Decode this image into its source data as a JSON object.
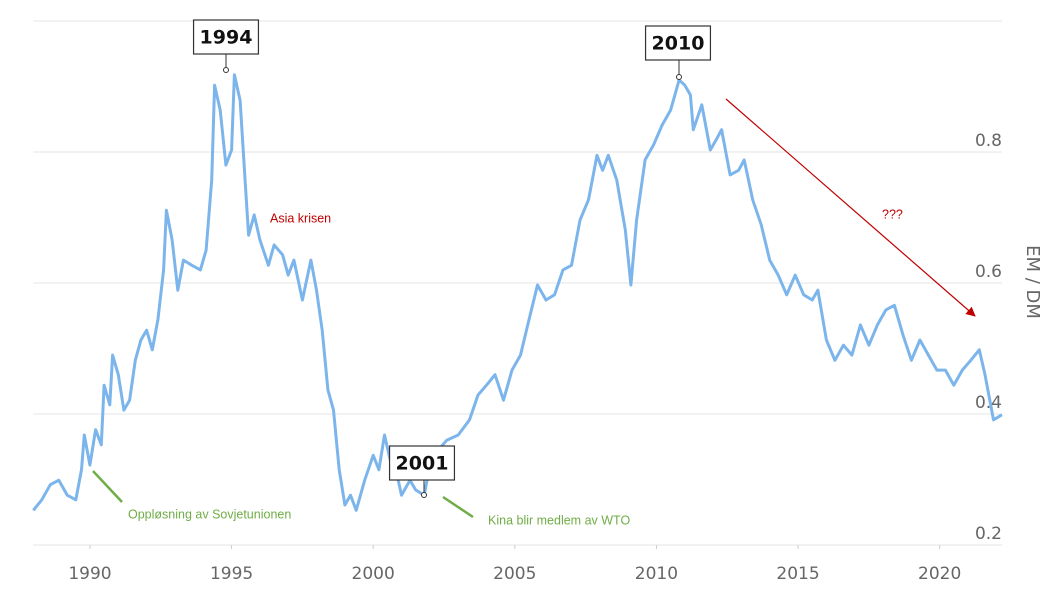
{
  "chart_data": {
    "type": "line",
    "y_label": "EM / DM",
    "xlim": [
      1988,
      2022.2
    ],
    "ylim": [
      0.2,
      1.0
    ],
    "xticks": [
      1990,
      1995,
      2000,
      2005,
      2010,
      2015,
      2020
    ],
    "yticks": [
      0.2,
      0.4,
      0.6,
      0.8
    ],
    "grid": true,
    "series": [
      {
        "color": "#7cb5ec",
        "x": [
          1988.0,
          1988.3,
          1988.6,
          1988.9,
          1989.2,
          1989.5,
          1989.7,
          1989.8,
          1990.0,
          1990.2,
          1990.4,
          1990.5,
          1990.7,
          1990.8,
          1991.0,
          1991.2,
          1991.4,
          1991.6,
          1991.8,
          1992.0,
          1992.2,
          1992.4,
          1992.6,
          1992.7,
          1992.9,
          1993.1,
          1993.3,
          1993.6,
          1993.9,
          1994.1,
          1994.3,
          1994.4,
          1994.6,
          1994.8,
          1995.0,
          1995.1,
          1995.3,
          1995.5,
          1995.6,
          1995.8,
          1996.0,
          1996.3,
          1996.5,
          1996.8,
          1997.0,
          1997.2,
          1997.5,
          1997.8,
          1998.0,
          1998.2,
          1998.4,
          1998.6,
          1998.8,
          1999.0,
          1999.2,
          1999.4,
          1999.7,
          2000.0,
          2000.2,
          2000.4,
          2000.6,
          2000.8,
          2001.0,
          2001.3,
          2001.5,
          2001.8,
          2002.0,
          2002.3,
          2002.6,
          2003.0,
          2003.4,
          2003.7,
          2004.0,
          2004.3,
          2004.6,
          2004.9,
          2005.2,
          2005.5,
          2005.8,
          2006.1,
          2006.4,
          2006.7,
          2007.0,
          2007.3,
          2007.6,
          2007.9,
          2008.1,
          2008.3,
          2008.6,
          2008.9,
          2009.1,
          2009.3,
          2009.6,
          2009.9,
          2010.2,
          2010.5,
          2010.8,
          2011.0,
          2011.2,
          2011.3,
          2011.6,
          2011.9,
          2012.1,
          2012.3,
          2012.6,
          2012.9,
          2013.1,
          2013.4,
          2013.7,
          2014.0,
          2014.3,
          2014.6,
          2014.9,
          2015.2,
          2015.5,
          2015.7,
          2016.0,
          2016.3,
          2016.6,
          2016.9,
          2017.2,
          2017.5,
          2017.8,
          2018.1,
          2018.4,
          2018.7,
          2019.0,
          2019.3,
          2019.6,
          2019.9,
          2020.2,
          2020.5,
          2020.8,
          2021.1,
          2021.4,
          2021.6,
          2021.9,
          2022.2
        ],
        "values": [
          0.253,
          0.269,
          0.292,
          0.299,
          0.276,
          0.269,
          0.315,
          0.368,
          0.322,
          0.376,
          0.353,
          0.444,
          0.414,
          0.49,
          0.46,
          0.406,
          0.421,
          0.482,
          0.513,
          0.528,
          0.498,
          0.544,
          0.62,
          0.711,
          0.666,
          0.589,
          0.635,
          0.627,
          0.62,
          0.65,
          0.757,
          0.902,
          0.864,
          0.78,
          0.803,
          0.918,
          0.879,
          0.742,
          0.673,
          0.704,
          0.666,
          0.627,
          0.658,
          0.643,
          0.612,
          0.635,
          0.574,
          0.635,
          0.589,
          0.528,
          0.437,
          0.406,
          0.315,
          0.261,
          0.276,
          0.253,
          0.299,
          0.337,
          0.315,
          0.368,
          0.33,
          0.315,
          0.276,
          0.299,
          0.284,
          0.276,
          0.322,
          0.345,
          0.36,
          0.368,
          0.391,
          0.429,
          0.444,
          0.46,
          0.421,
          0.467,
          0.49,
          0.544,
          0.597,
          0.574,
          0.582,
          0.62,
          0.627,
          0.696,
          0.727,
          0.795,
          0.772,
          0.795,
          0.757,
          0.681,
          0.597,
          0.696,
          0.788,
          0.811,
          0.841,
          0.864,
          0.91,
          0.902,
          0.887,
          0.834,
          0.872,
          0.803,
          0.818,
          0.834,
          0.765,
          0.772,
          0.788,
          0.727,
          0.689,
          0.635,
          0.612,
          0.582,
          0.612,
          0.582,
          0.574,
          0.589,
          0.513,
          0.482,
          0.505,
          0.49,
          0.536,
          0.505,
          0.536,
          0.559,
          0.566,
          0.521,
          0.482,
          0.513,
          0.49,
          0.467,
          0.467,
          0.444,
          0.467,
          0.482,
          0.498,
          0.46,
          0.391,
          0.399
        ]
      }
    ],
    "annotations": [
      {
        "label": "1994"
      },
      {
        "label": "2010"
      },
      {
        "label": "2001"
      },
      {
        "label": "Asia krisen"
      },
      {
        "label": "???"
      },
      {
        "label": "Oppløsning av Sovjetunionen"
      },
      {
        "label": "Kina blir medlem av WTO"
      }
    ]
  }
}
